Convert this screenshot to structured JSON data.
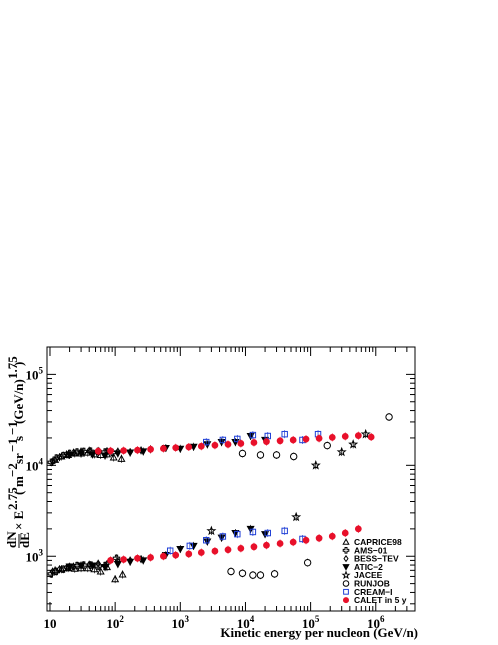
{
  "chart_data": {
    "type": "scatter",
    "title": "",
    "xlabel": "Kinetic energy per nucleon (GeV/n)",
    "ylabel_parts": {
      "frac_num": "dN",
      "frac_den": "dE",
      "times_e": "× E",
      "exp_main": "2.75",
      "open_paren": "(",
      "m": "m",
      "exp_m": "−2",
      "sr": "sr",
      "exp_sr": "−1",
      "s": "s",
      "exp_s": "−1",
      "gevn": "(GeV/n)",
      "exp_gevn": "1.75",
      "close_paren": ")"
    },
    "x_scale": "log",
    "y_scale": "log",
    "xlim": [
      9,
      4000000
    ],
    "ylim": [
      250,
      200000
    ],
    "x_ticks": [
      {
        "value": 10,
        "base": "10",
        "exp": ""
      },
      {
        "value": 100,
        "base": "10",
        "exp": "2"
      },
      {
        "value": 1000,
        "base": "10",
        "exp": "3"
      },
      {
        "value": 10000,
        "base": "10",
        "exp": "4"
      },
      {
        "value": 100000,
        "base": "10",
        "exp": "5"
      },
      {
        "value": 1000000,
        "base": "10",
        "exp": "6"
      }
    ],
    "y_ticks": [
      {
        "value": 1000,
        "base": "10",
        "exp": "3"
      },
      {
        "value": 10000,
        "base": "10",
        "exp": "4"
      },
      {
        "value": 100000,
        "base": "10",
        "exp": "5"
      }
    ],
    "grid": false,
    "legend_position": "bottom-right",
    "series": [
      {
        "name": "CAPRICE98",
        "marker": "triangle-open",
        "color": "#000000",
        "points": [
          {
            "x": 12,
            "y": 11500
          },
          {
            "x": 15,
            "y": 12500
          },
          {
            "x": 19,
            "y": 13000
          },
          {
            "x": 24,
            "y": 13500
          },
          {
            "x": 30,
            "y": 13500
          },
          {
            "x": 38,
            "y": 13800
          },
          {
            "x": 48,
            "y": 13200
          },
          {
            "x": 60,
            "y": 13000
          },
          {
            "x": 75,
            "y": 13200
          },
          {
            "x": 95,
            "y": 12200
          },
          {
            "x": 125,
            "y": 11800
          },
          {
            "x": 12,
            "y": 700
          },
          {
            "x": 15,
            "y": 720
          },
          {
            "x": 19,
            "y": 740
          },
          {
            "x": 24,
            "y": 730
          },
          {
            "x": 30,
            "y": 740
          },
          {
            "x": 38,
            "y": 740
          },
          {
            "x": 48,
            "y": 720
          },
          {
            "x": 60,
            "y": 680
          },
          {
            "x": 75,
            "y": 760
          },
          {
            "x": 100,
            "y": 560
          },
          {
            "x": 130,
            "y": 630
          }
        ]
      },
      {
        "name": "AMS−01",
        "marker": "cross-open",
        "color": "#000000",
        "points": [
          {
            "x": 10.5,
            "y": 10800
          },
          {
            "x": 12.5,
            "y": 12000
          },
          {
            "x": 16,
            "y": 12800
          },
          {
            "x": 20,
            "y": 13500
          },
          {
            "x": 26,
            "y": 14000
          },
          {
            "x": 33,
            "y": 14200
          },
          {
            "x": 42,
            "y": 14300
          },
          {
            "x": 55,
            "y": 14200
          },
          {
            "x": 70,
            "y": 14000
          },
          {
            "x": 90,
            "y": 13800
          },
          {
            "x": 10.5,
            "y": 640
          },
          {
            "x": 12.5,
            "y": 680
          },
          {
            "x": 16,
            "y": 720
          },
          {
            "x": 20,
            "y": 760
          },
          {
            "x": 26,
            "y": 790
          },
          {
            "x": 33,
            "y": 800
          },
          {
            "x": 42,
            "y": 800
          },
          {
            "x": 55,
            "y": 780
          },
          {
            "x": 70,
            "y": 790
          },
          {
            "x": 105,
            "y": 950
          }
        ]
      },
      {
        "name": "BESS−TEV",
        "marker": "diamond-open",
        "color": "#000000",
        "points": [
          {
            "x": 11,
            "y": 11000
          },
          {
            "x": 14,
            "y": 12300
          },
          {
            "x": 18,
            "y": 13200
          },
          {
            "x": 23,
            "y": 13800
          },
          {
            "x": 30,
            "y": 14200
          },
          {
            "x": 40,
            "y": 14500
          },
          {
            "x": 55,
            "y": 14400
          },
          {
            "x": 75,
            "y": 14300
          },
          {
            "x": 110,
            "y": 14200
          },
          {
            "x": 170,
            "y": 14000
          },
          {
            "x": 250,
            "y": 14600
          },
          {
            "x": 350,
            "y": 15000
          },
          {
            "x": 11,
            "y": 680
          },
          {
            "x": 14,
            "y": 720
          },
          {
            "x": 18,
            "y": 750
          },
          {
            "x": 23,
            "y": 770
          },
          {
            "x": 30,
            "y": 790
          },
          {
            "x": 40,
            "y": 810
          },
          {
            "x": 55,
            "y": 830
          },
          {
            "x": 75,
            "y": 820
          },
          {
            "x": 110,
            "y": 880
          },
          {
            "x": 170,
            "y": 900
          },
          {
            "x": 250,
            "y": 930
          }
        ]
      },
      {
        "name": "ATIC−2",
        "marker": "triangle-down-filled",
        "color": "#000000",
        "points": [
          {
            "x": 20,
            "y": 13000
          },
          {
            "x": 30,
            "y": 13500
          },
          {
            "x": 45,
            "y": 13200
          },
          {
            "x": 70,
            "y": 12800
          },
          {
            "x": 110,
            "y": 13500
          },
          {
            "x": 170,
            "y": 13800
          },
          {
            "x": 270,
            "y": 14200
          },
          {
            "x": 600,
            "y": 15500
          },
          {
            "x": 1000,
            "y": 15200
          },
          {
            "x": 1600,
            "y": 16000
          },
          {
            "x": 2600,
            "y": 17000
          },
          {
            "x": 4300,
            "y": 18000
          },
          {
            "x": 7000,
            "y": 18000
          },
          {
            "x": 12000,
            "y": 21000
          },
          {
            "x": 20000,
            "y": 19000
          },
          {
            "x": 20,
            "y": 770
          },
          {
            "x": 30,
            "y": 790
          },
          {
            "x": 45,
            "y": 790
          },
          {
            "x": 70,
            "y": 760
          },
          {
            "x": 110,
            "y": 820
          },
          {
            "x": 170,
            "y": 870
          },
          {
            "x": 270,
            "y": 900
          },
          {
            "x": 600,
            "y": 1030
          },
          {
            "x": 1000,
            "y": 1200
          },
          {
            "x": 1600,
            "y": 1300
          },
          {
            "x": 2600,
            "y": 1450
          },
          {
            "x": 4300,
            "y": 1600
          },
          {
            "x": 7000,
            "y": 1800
          },
          {
            "x": 12000,
            "y": 2000
          },
          {
            "x": 20000,
            "y": 1750
          }
        ]
      },
      {
        "name": "JACEE",
        "marker": "star-open",
        "color": "#000000",
        "points": [
          {
            "x": 3000,
            "y": 1900
          },
          {
            "x": 60000,
            "y": 2700
          },
          {
            "x": 120000,
            "y": 10000
          },
          {
            "x": 300000,
            "y": 14000
          },
          {
            "x": 450000,
            "y": 17000
          },
          {
            "x": 700000,
            "y": 22000
          }
        ]
      },
      {
        "name": "RUNJOB",
        "marker": "circle-open",
        "color": "#000000",
        "points": [
          {
            "x": 9000,
            "y": 13500
          },
          {
            "x": 17000,
            "y": 13000
          },
          {
            "x": 30000,
            "y": 13000
          },
          {
            "x": 55000,
            "y": 12500
          },
          {
            "x": 180000,
            "y": 16500
          },
          {
            "x": 1600000,
            "y": 34000
          },
          {
            "x": 6000,
            "y": 680
          },
          {
            "x": 9000,
            "y": 650
          },
          {
            "x": 13000,
            "y": 620
          },
          {
            "x": 17000,
            "y": 620
          },
          {
            "x": 28000,
            "y": 640
          },
          {
            "x": 90000,
            "y": 850
          }
        ]
      },
      {
        "name": "CREAM−I",
        "marker": "square-open",
        "color": "#1f3fd6",
        "points": [
          {
            "x": 2500,
            "y": 18000
          },
          {
            "x": 4500,
            "y": 19000
          },
          {
            "x": 7500,
            "y": 19500
          },
          {
            "x": 13000,
            "y": 21500
          },
          {
            "x": 22000,
            "y": 21000
          },
          {
            "x": 40000,
            "y": 22000
          },
          {
            "x": 75000,
            "y": 19000
          },
          {
            "x": 130000,
            "y": 22000
          },
          {
            "x": 700,
            "y": 1150
          },
          {
            "x": 1400,
            "y": 1300
          },
          {
            "x": 2500,
            "y": 1500
          },
          {
            "x": 4500,
            "y": 1650
          },
          {
            "x": 7500,
            "y": 1750
          },
          {
            "x": 13000,
            "y": 1850
          },
          {
            "x": 22000,
            "y": 1800
          },
          {
            "x": 40000,
            "y": 1900
          },
          {
            "x": 75000,
            "y": 1550
          }
        ]
      },
      {
        "name": "CALET in 5 y",
        "marker": "circle-filled",
        "color": "#e8102a",
        "points": [
          {
            "x": 55,
            "y": 14300
          },
          {
            "x": 85,
            "y": 14400
          },
          {
            "x": 135,
            "y": 14500
          },
          {
            "x": 220,
            "y": 14700
          },
          {
            "x": 350,
            "y": 15000
          },
          {
            "x": 550,
            "y": 15300
          },
          {
            "x": 850,
            "y": 15600
          },
          {
            "x": 1350,
            "y": 15900
          },
          {
            "x": 2100,
            "y": 16200
          },
          {
            "x": 3400,
            "y": 16600
          },
          {
            "x": 5400,
            "y": 17000
          },
          {
            "x": 8500,
            "y": 17400
          },
          {
            "x": 13500,
            "y": 17800
          },
          {
            "x": 21000,
            "y": 18200
          },
          {
            "x": 34000,
            "y": 18600
          },
          {
            "x": 54000,
            "y": 19000
          },
          {
            "x": 85000,
            "y": 19400
          },
          {
            "x": 135000,
            "y": 19800
          },
          {
            "x": 215000,
            "y": 20300
          },
          {
            "x": 340000,
            "y": 20800
          },
          {
            "x": 540000,
            "y": 21200
          },
          {
            "x": 850000,
            "y": 20500
          },
          {
            "x": 85,
            "y": 900
          },
          {
            "x": 135,
            "y": 920
          },
          {
            "x": 220,
            "y": 950
          },
          {
            "x": 350,
            "y": 970
          },
          {
            "x": 550,
            "y": 1000
          },
          {
            "x": 850,
            "y": 1030
          },
          {
            "x": 1350,
            "y": 1060
          },
          {
            "x": 2100,
            "y": 1100
          },
          {
            "x": 3400,
            "y": 1140
          },
          {
            "x": 5400,
            "y": 1180
          },
          {
            "x": 8500,
            "y": 1220
          },
          {
            "x": 13500,
            "y": 1270
          },
          {
            "x": 21000,
            "y": 1320
          },
          {
            "x": 34000,
            "y": 1380
          },
          {
            "x": 54000,
            "y": 1430
          },
          {
            "x": 85000,
            "y": 1500
          },
          {
            "x": 135000,
            "y": 1580
          },
          {
            "x": 215000,
            "y": 1660
          },
          {
            "x": 340000,
            "y": 1800
          },
          {
            "x": 540000,
            "y": 2000
          }
        ]
      }
    ]
  }
}
